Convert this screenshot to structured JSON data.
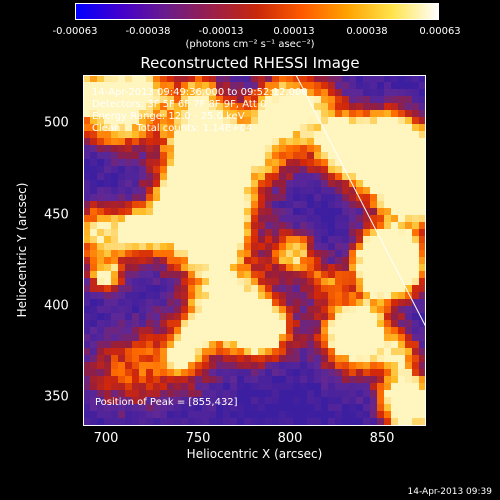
{
  "colorbar": {
    "ticks": [
      "-0.00063",
      "-0.00038",
      "-0.00013",
      "0.00013",
      "0.00038",
      "0.00063"
    ],
    "units_label": "(photons cm⁻² s⁻¹ asec⁻²)",
    "colormap": [
      "#0000ff",
      "#4400cc",
      "#6a1c8a",
      "#9a1f4a",
      "#c8280a",
      "#ff5a00",
      "#ffa200",
      "#ffe44d",
      "#ffffff"
    ]
  },
  "image_title": "Reconstructed RHESSI Image",
  "info": {
    "time_range": "14-Apr-2013 09:49:36.000 to 09:52:12.000",
    "detectors": "Detectors: 3F 5F 6F 7F 8F 9F, Att 0",
    "energy_range": "Energy Range: 12.0 - 25.0 keV",
    "clean": "Clean     Total counts: 1.14E+04"
  },
  "peak_label": "Position of Peak = [855,432]",
  "axes": {
    "xlabel": "Heliocentric X (arcsec)",
    "ylabel": "Heliocentric Y (arcsec)",
    "x_ticks": [
      "700",
      "750",
      "800",
      "850"
    ],
    "y_ticks": [
      "500",
      "450",
      "400",
      "350"
    ],
    "xlim": [
      682,
      875
    ],
    "ylim": [
      333,
      530
    ]
  },
  "footer_timestamp": "14-Apr-2013 09:39"
}
